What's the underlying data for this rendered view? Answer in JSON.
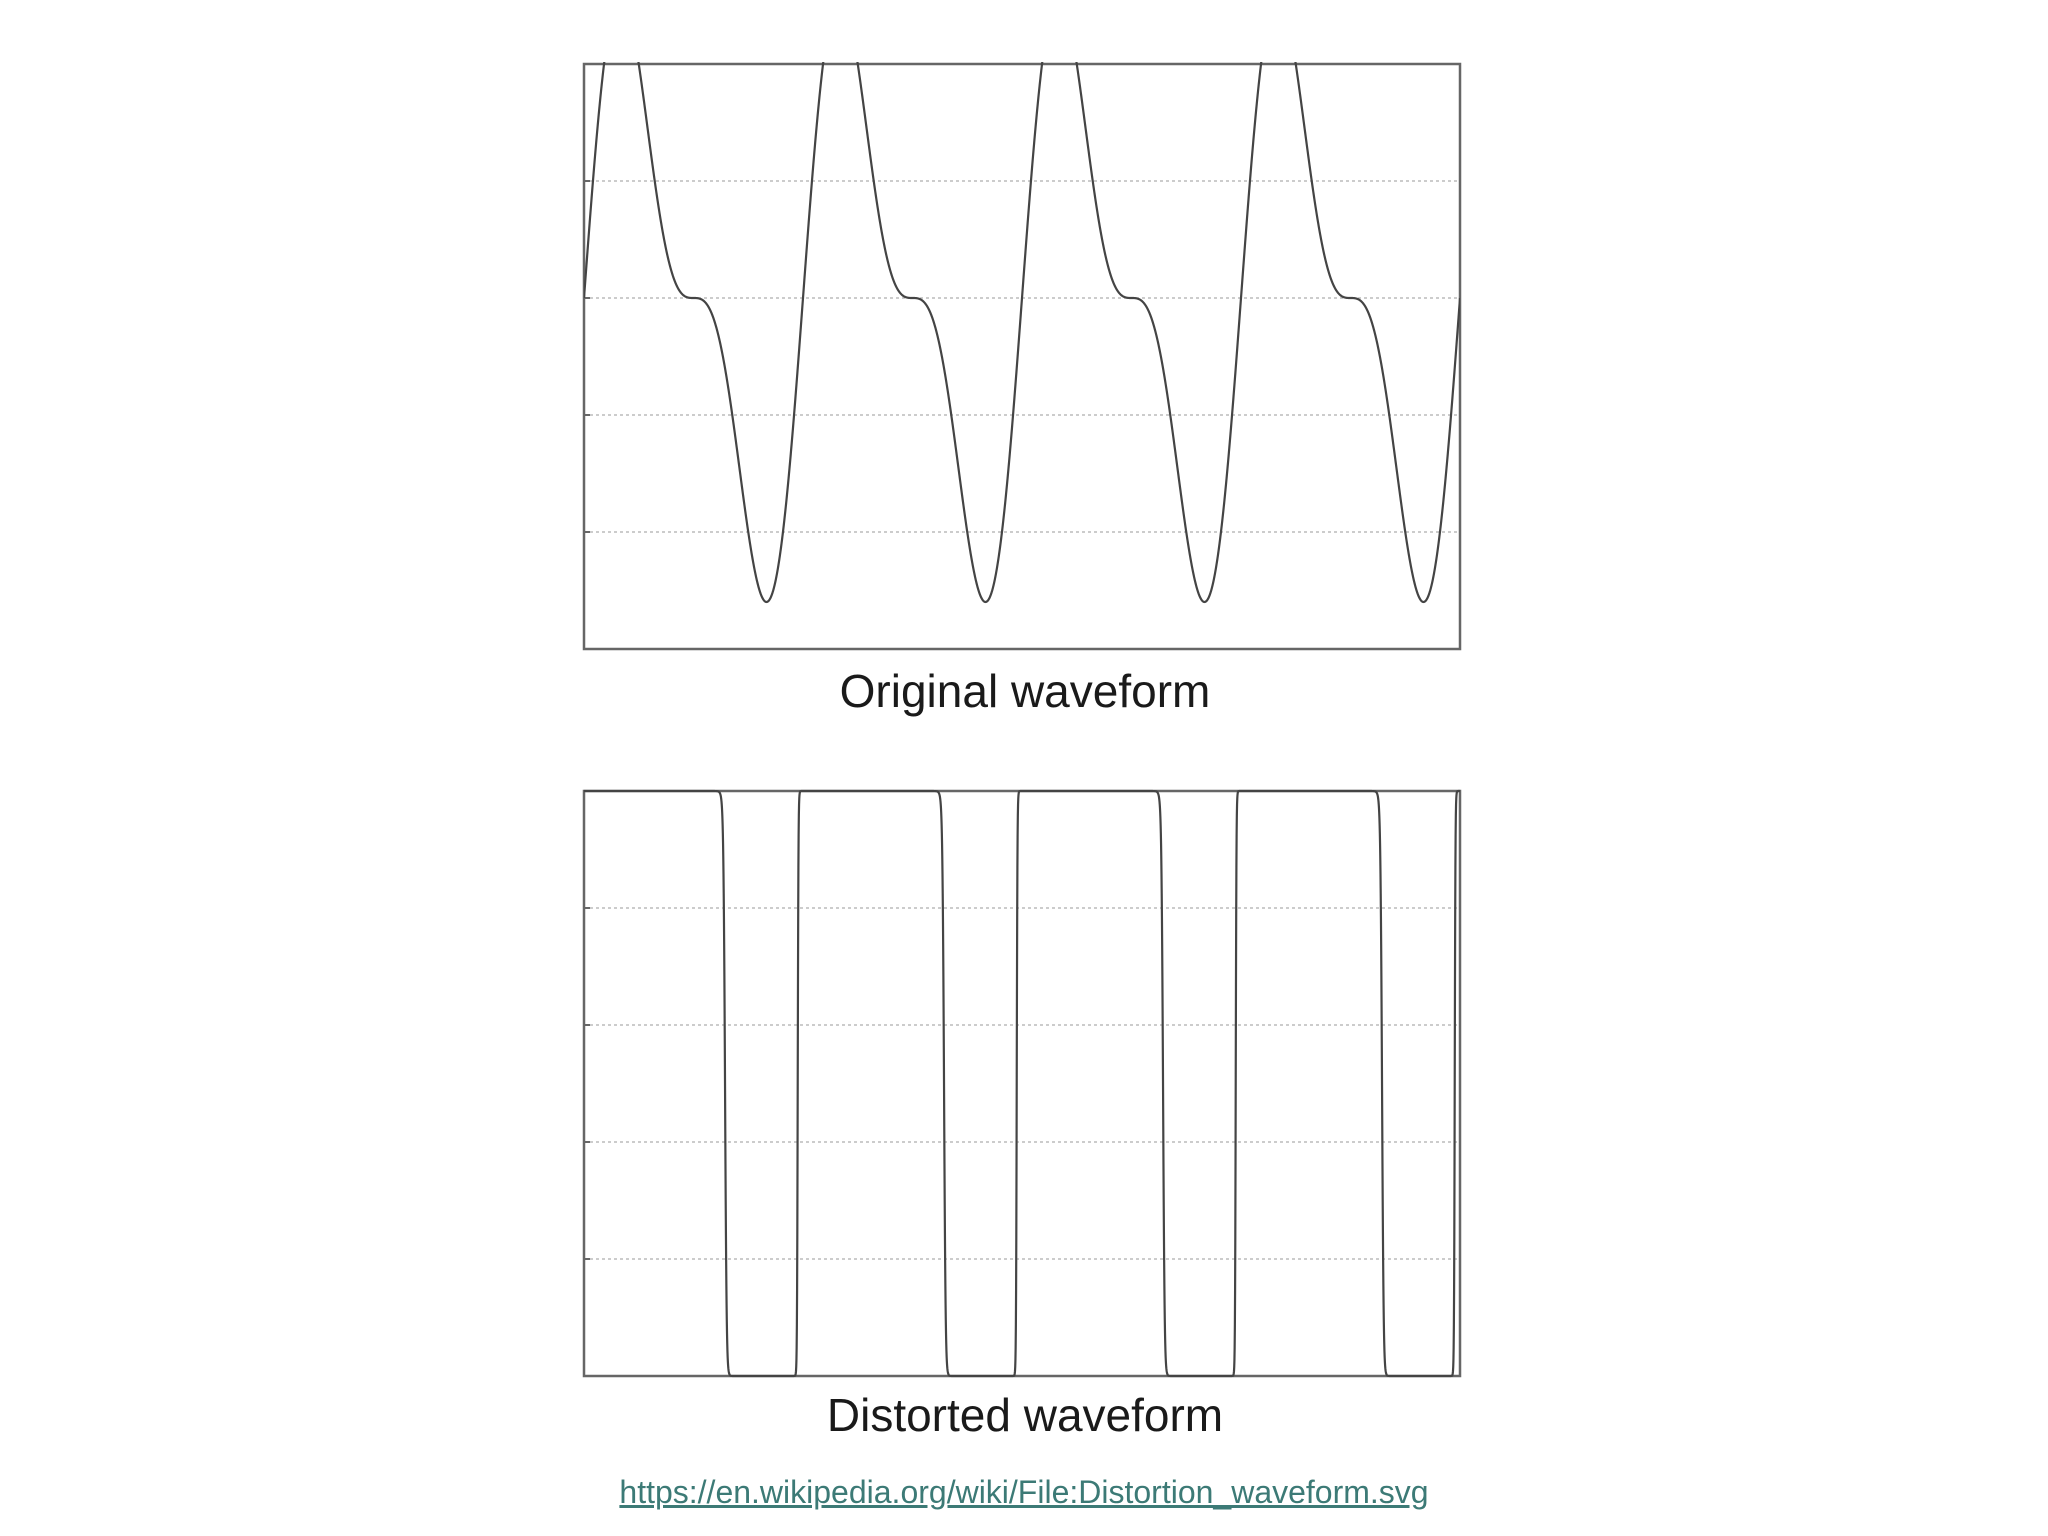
{
  "chart_data": [
    {
      "type": "line",
      "title": "Original waveform",
      "xlabel": "",
      "ylabel": "",
      "xlim": [
        0,
        4
      ],
      "ylim": [
        -1.5,
        1
      ],
      "grid": true,
      "series": [
        {
          "signal": "sin(2*pi*t) + 0.5*sin(4*pi*t)",
          "x_start": 0,
          "x_end": 4,
          "color": "#444444"
        }
      ]
    },
    {
      "type": "line",
      "title": "Distorted waveform",
      "xlabel": "",
      "ylabel": "",
      "xlim": [
        0,
        4
      ],
      "ylim": [
        -1,
        1
      ],
      "grid": true,
      "series": [
        {
          "signal": "tanh(25*(sin(2*pi*t) + 0.5*sin(4*pi*t) + 0.3))",
          "x_start": 0,
          "x_end": 4,
          "color": "#444444"
        }
      ]
    }
  ],
  "source": {
    "link_text": "https://en.wikipedia.org/wiki/File:Distortion_waveform.svg"
  },
  "colors": {
    "frame": "#666666",
    "grid": "#bbbbbb",
    "line": "#444444",
    "link": "#3c7a76"
  }
}
